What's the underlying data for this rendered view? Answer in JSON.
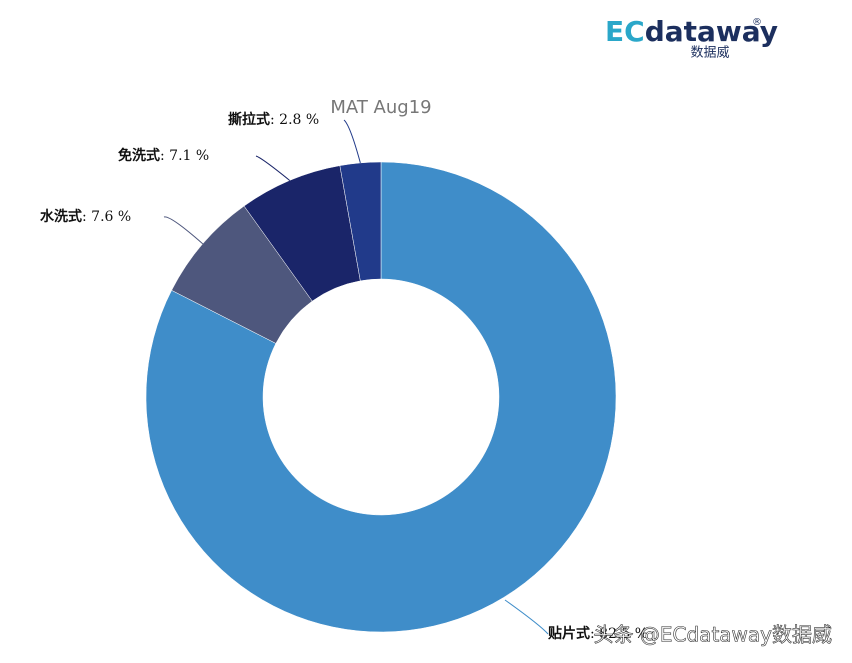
{
  "chart_data": {
    "type": "donut",
    "title": "MAT Aug19",
    "categories": [
      "贴片式",
      "水洗式",
      "免洗式",
      "撕拉式"
    ],
    "values": [
      82.5,
      7.6,
      7.1,
      2.8
    ],
    "value_labels": [
      "82.5 %",
      "7.6 %",
      "7.1 %",
      "2.8 %"
    ],
    "label_separator": ": ",
    "colors": [
      "#3f8dc9",
      "#4e577d",
      "#1a2569",
      "#213a8a"
    ]
  },
  "logo": {
    "brand_ec": "EC",
    "brand_rest": "dataway",
    "mark": "®",
    "subtitle": "数据威"
  },
  "watermark": "头条 @ECdataway数据威"
}
